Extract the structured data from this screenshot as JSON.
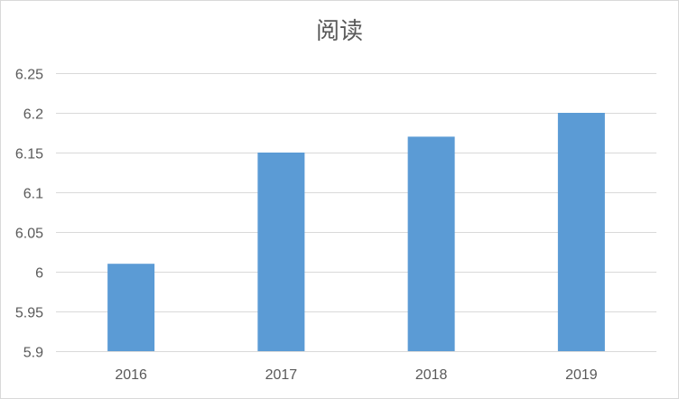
{
  "chart_data": {
    "type": "bar",
    "title": "阅读",
    "xlabel": "",
    "ylabel": "",
    "categories": [
      "2016",
      "2017",
      "2018",
      "2019"
    ],
    "values": [
      6.01,
      6.15,
      6.17,
      6.2
    ],
    "ylim": [
      5.9,
      6.25
    ],
    "yticks": [
      "5.9",
      "5.95",
      "6",
      "6.05",
      "6.1",
      "6.15",
      "6.2",
      "6.25"
    ],
    "grid": true,
    "legend": "none",
    "bar_color": "#5b9bd5"
  }
}
